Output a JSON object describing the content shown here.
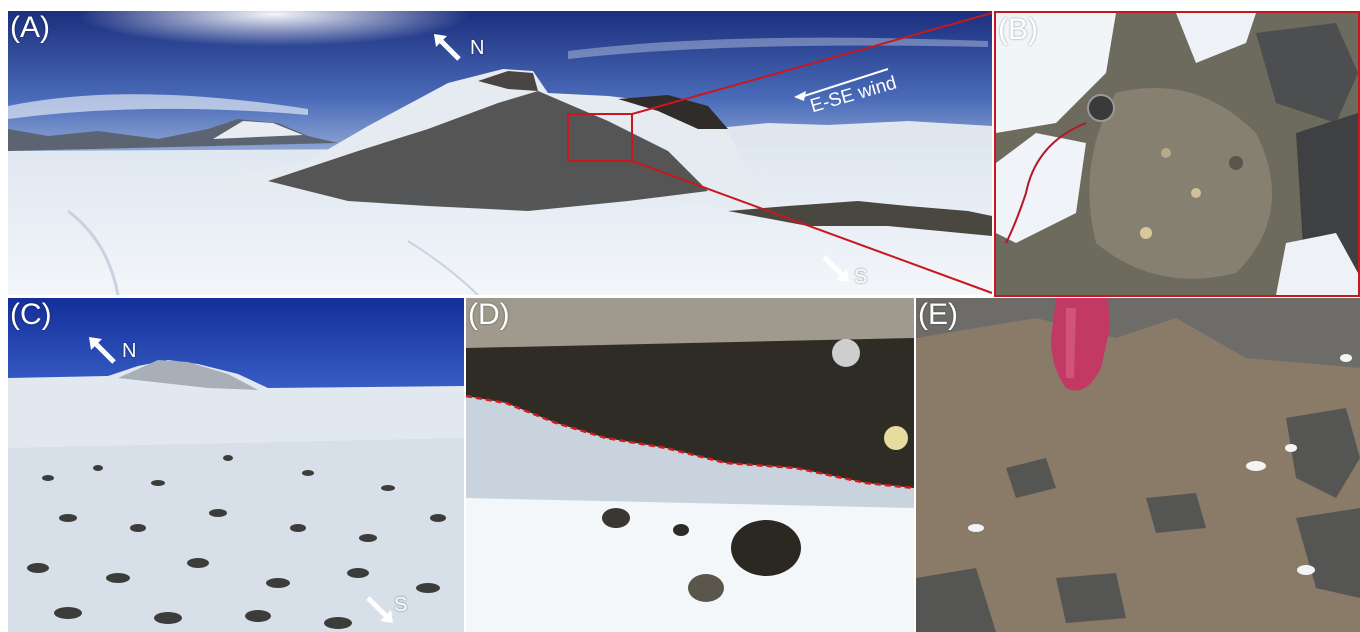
{
  "panels": [
    {
      "label": "(A)",
      "directions": {
        "north": "N",
        "south": "S"
      },
      "annotation": "E-SE wind"
    },
    {
      "label": "(B)"
    },
    {
      "label": "(C)",
      "directions": {
        "north": "N",
        "south": "S"
      }
    },
    {
      "label": "(D)"
    },
    {
      "label": "(E)"
    }
  ],
  "colors": {
    "inset_frame": "#c8181e",
    "sky": "#1d3a9c",
    "snow": "#e8eef5",
    "rock": "#3a3a38",
    "boundary_line": "#d41a1a",
    "pink_scoop": "#c23a63",
    "soil": "#8a7a68"
  }
}
